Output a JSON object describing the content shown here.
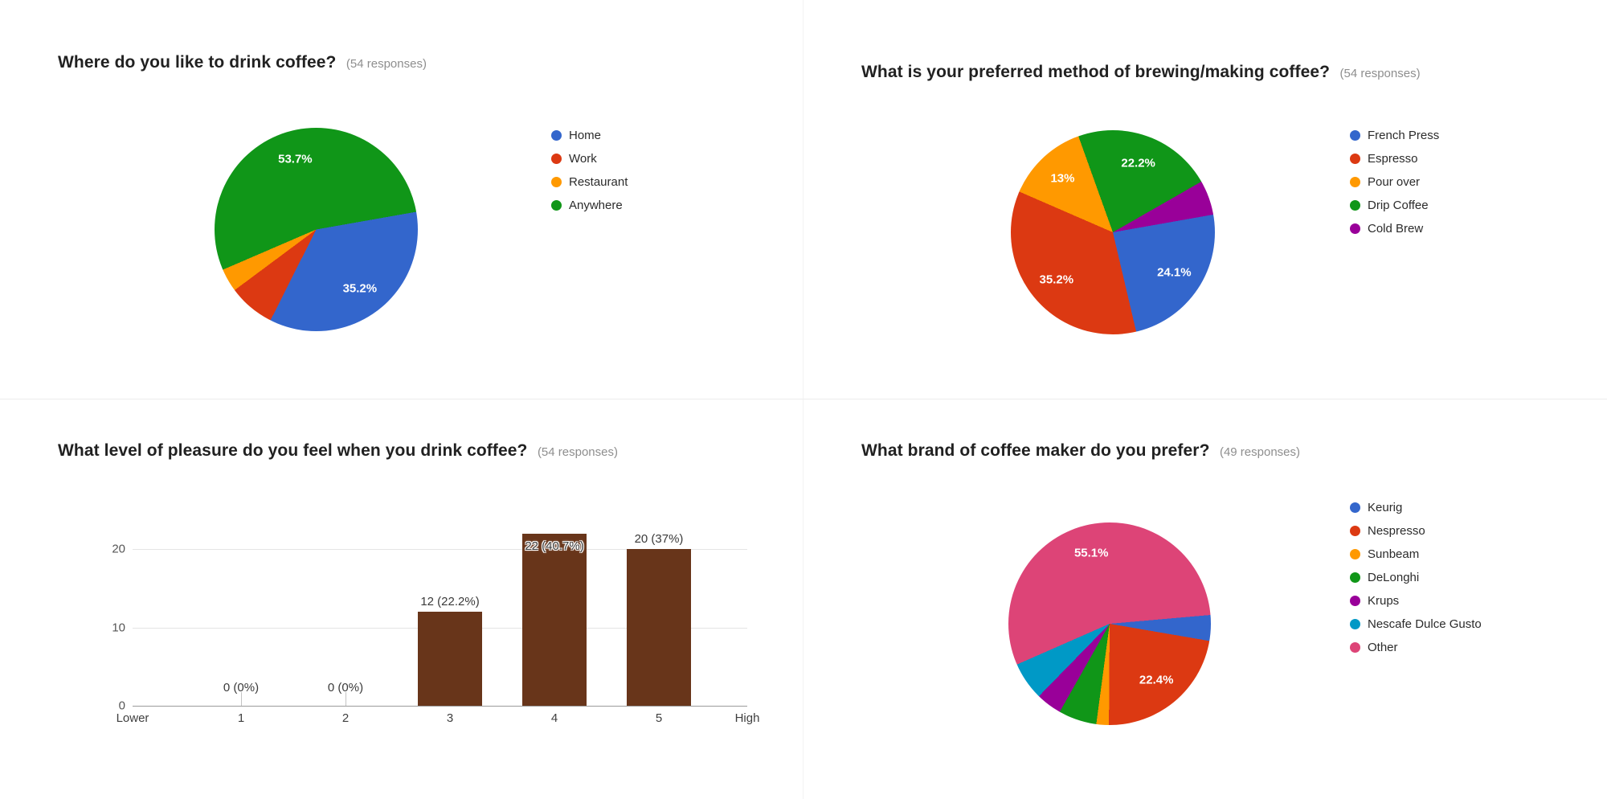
{
  "chart_data": [
    {
      "type": "pie",
      "title": "Where do you like to drink coffee?",
      "responses_label": "(54 responses)",
      "legend_position": "right",
      "start_angle_deg": 80,
      "slices": [
        {
          "label": "Home",
          "pct": 35.2,
          "color": "#3366cc"
        },
        {
          "label": "Work",
          "pct": 7.4,
          "color": "#dc3912"
        },
        {
          "label": "Restaurant",
          "pct": 3.7,
          "color": "#ff9900"
        },
        {
          "label": "Anywhere",
          "pct": 53.7,
          "color": "#109618"
        }
      ]
    },
    {
      "type": "pie",
      "title": "What is your preferred method of brewing/making coffee?",
      "responses_label": "(54 responses)",
      "legend_position": "right",
      "start_angle_deg": 80,
      "slices": [
        {
          "label": "French Press",
          "pct": 24.1,
          "color": "#3366cc"
        },
        {
          "label": "Espresso",
          "pct": 35.2,
          "color": "#dc3912"
        },
        {
          "label": "Pour over",
          "pct": 13,
          "color": "#ff9900"
        },
        {
          "label": "Drip Coffee",
          "pct": 22.2,
          "color": "#109618"
        },
        {
          "label": "Cold Brew",
          "pct": 5.6,
          "color": "#990099"
        }
      ]
    },
    {
      "type": "bar",
      "title": "What level of pleasure do you feel when you drink coffee?",
      "responses_label": "(54 responses)",
      "bar_color": "#68351a",
      "categories": [
        "1",
        "2",
        "3",
        "4",
        "5"
      ],
      "values": [
        0,
        0,
        12,
        22,
        20
      ],
      "value_labels": [
        "0 (0%)",
        "0 (0%)",
        "12 (22.2%)",
        "22 (40.7%)",
        "20 (37%)"
      ],
      "x_edge_labels": [
        "Lower",
        "High"
      ],
      "y_ticks": [
        0,
        10,
        20
      ],
      "ylim": [
        0,
        24
      ],
      "grid": true
    },
    {
      "type": "pie",
      "title": "What brand of coffee maker do you prefer?",
      "responses_label": "(49 responses)",
      "legend_position": "right",
      "start_angle_deg": 85,
      "slices": [
        {
          "label": "Keurig",
          "pct": 4.1,
          "color": "#3366cc"
        },
        {
          "label": "Nespresso",
          "pct": 22.4,
          "color": "#dc3912"
        },
        {
          "label": "Sunbeam",
          "pct": 2,
          "color": "#ff9900"
        },
        {
          "label": "DeLonghi",
          "pct": 6.1,
          "color": "#109618"
        },
        {
          "label": "Krups",
          "pct": 4.1,
          "color": "#990099"
        },
        {
          "label": "Nescafe Dulce Gusto",
          "pct": 6.1,
          "color": "#0099c6"
        },
        {
          "label": "Other",
          "pct": 55.1,
          "color": "#dd4477"
        }
      ]
    }
  ]
}
